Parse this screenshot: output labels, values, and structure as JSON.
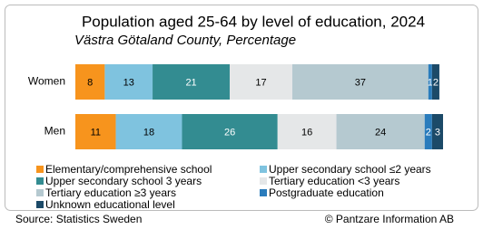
{
  "chart_data": {
    "type": "stacked-bar-horizontal",
    "title": "Population aged 25-64 by level of education, 2024",
    "subtitle": "Västra Götaland County, Percentage",
    "categories": [
      "Women",
      "Men"
    ],
    "series": [
      {
        "name": "Elementary/comprehensive school",
        "color": "#f7941d",
        "values": [
          8,
          11
        ]
      },
      {
        "name": "Upper secondary school ≤2 years",
        "color": "#7fc3df",
        "values": [
          13,
          18
        ]
      },
      {
        "name": "Upper secondary school 3 years",
        "color": "#338c91",
        "values": [
          21,
          26
        ]
      },
      {
        "name": "Tertiary education <3 years",
        "color": "#e5e7e8",
        "values": [
          17,
          16
        ]
      },
      {
        "name": "Tertiary education ≥3 years",
        "color": "#b5c9d0",
        "values": [
          37,
          24
        ]
      },
      {
        "name": "Postgraduate education",
        "color": "#2a7cbc",
        "values": [
          1,
          2
        ]
      },
      {
        "name": "Unknown educational level",
        "color": "#1c4a68",
        "values": [
          2,
          3
        ]
      }
    ],
    "xlim": [
      0,
      100
    ],
    "source": "Source: Statistics Sweden",
    "credit": "© Pantzare Information AB"
  }
}
